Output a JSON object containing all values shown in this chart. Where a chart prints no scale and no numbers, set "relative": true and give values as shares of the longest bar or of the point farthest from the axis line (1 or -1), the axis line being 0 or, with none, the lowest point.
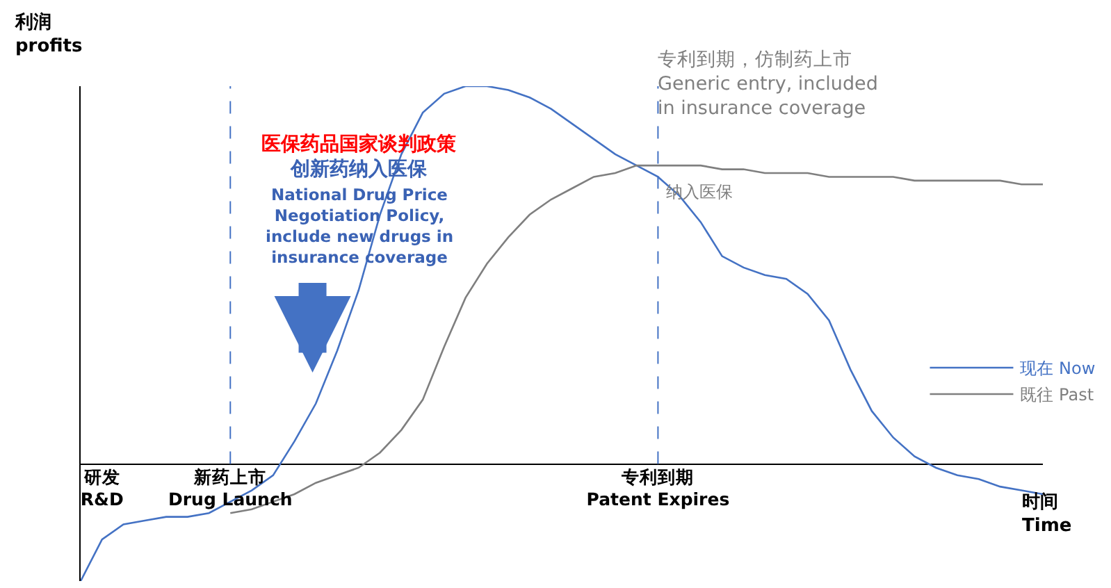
{
  "chart_data": {
    "type": "line",
    "relative": true,
    "xlabel": "时间\nTime",
    "ylabel": "利润\nprofits",
    "categories": [
      null,
      "研发\nR&D",
      null,
      null,
      null,
      null,
      null,
      "新药上市\nDrug Launch",
      null,
      null,
      null,
      null,
      null,
      null,
      null,
      null,
      null,
      null,
      null,
      null,
      null,
      null,
      null,
      null,
      null,
      null,
      null,
      "专利到期\nPatent Expires",
      null,
      null,
      null,
      null,
      null,
      null,
      null,
      null,
      null,
      null,
      null,
      null,
      null,
      null,
      null,
      null,
      null,
      null
    ],
    "series": [
      {
        "name": "现在 Now",
        "color": "#4472c4",
        "values": [
          -0.31,
          -0.2,
          -0.16,
          -0.15,
          -0.14,
          -0.14,
          -0.13,
          -0.1,
          -0.07,
          -0.03,
          0.06,
          0.16,
          0.3,
          0.46,
          0.66,
          0.82,
          0.93,
          0.98,
          1.0,
          1.0,
          0.99,
          0.97,
          0.94,
          0.9,
          0.86,
          0.82,
          0.79,
          0.76,
          0.71,
          0.64,
          0.55,
          0.52,
          0.5,
          0.49,
          0.45,
          0.38,
          0.25,
          0.14,
          0.07,
          0.02,
          -0.01,
          -0.03,
          -0.04,
          -0.06,
          -0.07,
          -0.08
        ]
      },
      {
        "name": "既往 Past",
        "color": "#7f7f7f",
        "values": [
          null,
          null,
          null,
          null,
          null,
          null,
          null,
          -0.13,
          -0.12,
          -0.1,
          -0.08,
          -0.05,
          -0.03,
          -0.01,
          0.03,
          0.09,
          0.17,
          0.31,
          0.44,
          0.53,
          0.6,
          0.66,
          0.7,
          0.73,
          0.76,
          0.77,
          0.79,
          0.79,
          0.79,
          0.79,
          0.78,
          0.78,
          0.77,
          0.77,
          0.77,
          0.76,
          0.76,
          0.76,
          0.76,
          0.75,
          0.75,
          0.75,
          0.75,
          0.75,
          0.74,
          0.74
        ]
      }
    ],
    "ref_lines": [
      {
        "axis": "x",
        "value": "新药上市\nDrug Launch",
        "color": "#4472c4",
        "line_style": "dashed"
      },
      {
        "axis": "x",
        "value": "专利到期\nPatent Expires",
        "color": "#4472c4",
        "line_style": "dashed"
      }
    ],
    "annotations": [
      "医保药品国家谈判政策",
      "创新药纳入医保",
      "National Drug Price\nNegotiation Policy,\ninclude new drugs in\ninsurance coverage",
      "专利到期，仿制药上市\nGeneric entry, included\nin insurance coverage",
      "纳入医保"
    ],
    "legend": "right",
    "marker": "none",
    "line_style": "solid"
  }
}
